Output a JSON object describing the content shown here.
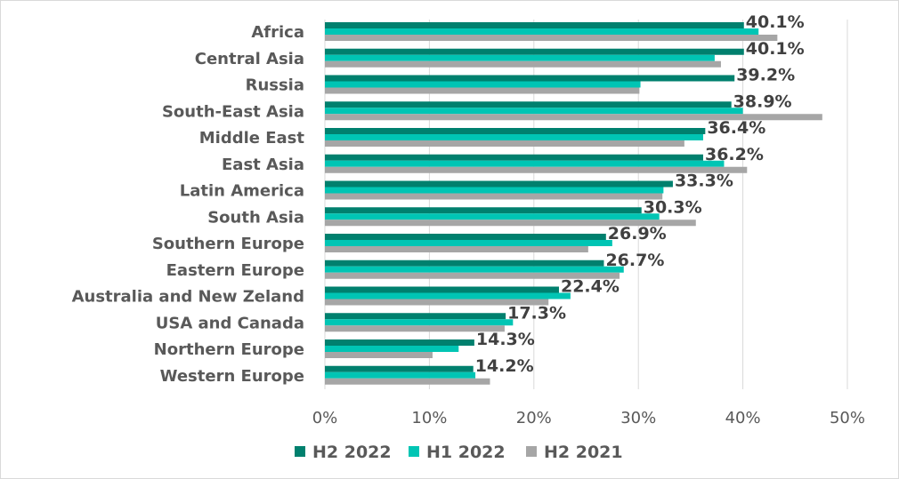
{
  "chart_data": {
    "type": "bar",
    "orientation": "horizontal",
    "categories": [
      "Africa",
      "Central Asia",
      "Russia",
      "South-East Asia",
      "Middle East",
      "East Asia",
      "Latin America",
      "South Asia",
      "Southern Europe",
      "Eastern Europe",
      "Australia and New Zeland",
      "USA and Canada",
      "Northern Europe",
      "Western Europe"
    ],
    "series": [
      {
        "name": "H2 2022",
        "color": "#00806e",
        "values": [
          40.1,
          40.1,
          39.2,
          38.9,
          36.4,
          36.2,
          33.3,
          30.3,
          26.9,
          26.7,
          22.4,
          17.3,
          14.3,
          14.2
        ]
      },
      {
        "name": "H1 2022",
        "color": "#00c5b4",
        "values": [
          41.5,
          37.3,
          30.2,
          40.0,
          36.2,
          38.2,
          32.4,
          32.0,
          27.5,
          28.6,
          23.5,
          18.0,
          12.8,
          14.4
        ]
      },
      {
        "name": "H2 2021",
        "color": "#a6a6a6",
        "values": [
          43.3,
          37.9,
          30.1,
          47.6,
          34.4,
          40.4,
          32.3,
          35.5,
          25.2,
          28.2,
          21.4,
          17.2,
          10.3,
          15.8
        ]
      }
    ],
    "data_labels": [
      "40.1%",
      "40.1%",
      "39.2%",
      "38.9%",
      "36.4%",
      "36.2%",
      "33.3%",
      "30.3%",
      "26.9%",
      "26.7%",
      "22.4%",
      "17.3%",
      "14.3%",
      "14.2%"
    ],
    "x_ticks": [
      "0%",
      "10%",
      "20%",
      "30%",
      "40%",
      "50%"
    ],
    "xlim": [
      0,
      50
    ],
    "grid": "vertical",
    "legend": "bottom"
  }
}
